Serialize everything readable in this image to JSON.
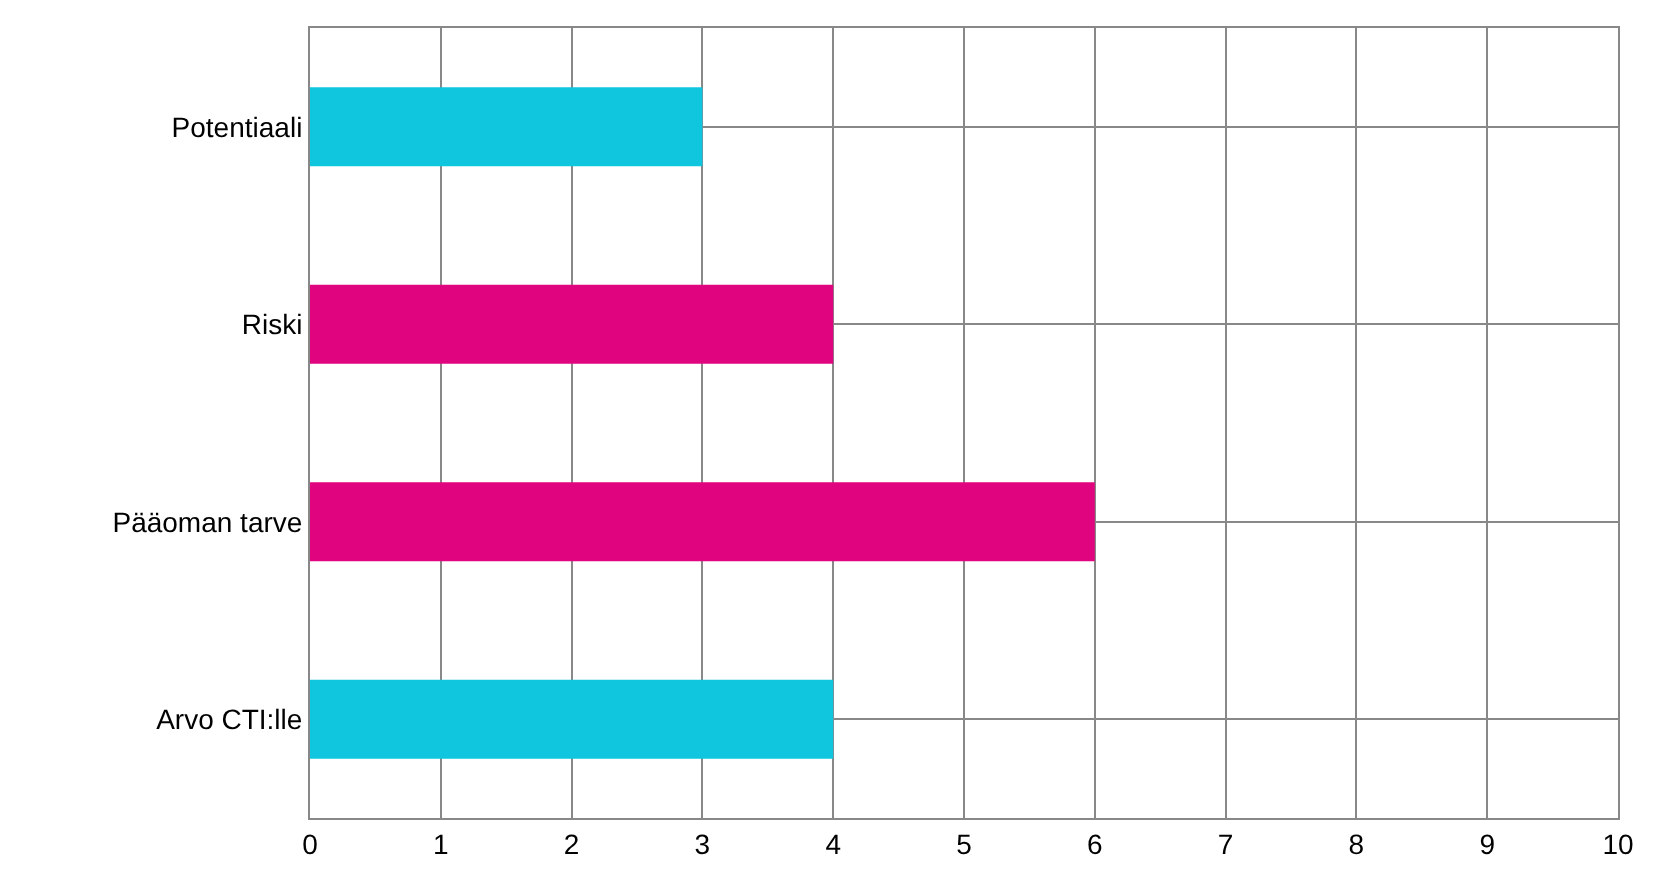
{
  "chart_data": {
    "type": "bar",
    "orientation": "horizontal",
    "categories": [
      "Potentiaali",
      "Riski",
      "Pääoman tarve",
      "Arvo CTI:lle"
    ],
    "values": [
      3,
      4,
      6,
      4
    ],
    "colors": [
      "#10c6de",
      "#e0047f",
      "#e0047f",
      "#10c6de"
    ],
    "xlim": [
      0,
      10
    ],
    "xticks": [
      0,
      1,
      2,
      3,
      4,
      5,
      6,
      7,
      8,
      9,
      10
    ],
    "grid": true
  }
}
